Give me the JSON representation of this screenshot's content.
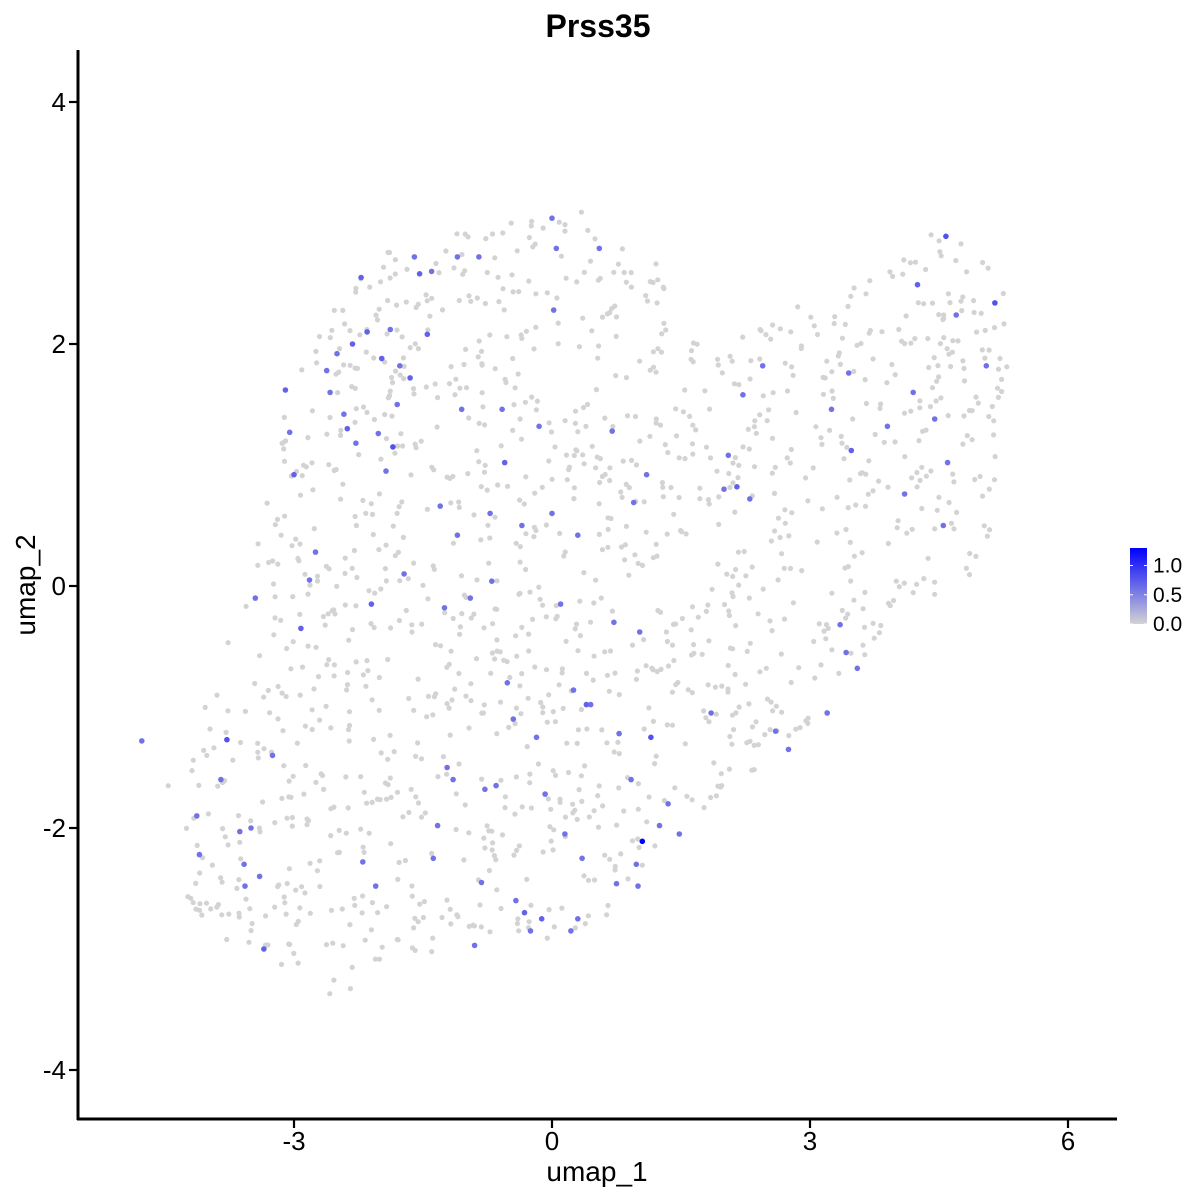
{
  "chart_data": {
    "type": "scatter",
    "title": "Prss35",
    "xlabel": "umap_1",
    "ylabel": "umap_2",
    "xlim": [
      -5.85,
      6.2
    ],
    "ylim": [
      -4.35,
      4.45
    ],
    "xticks": [
      -3,
      0,
      3,
      6
    ],
    "yticks": [
      -4,
      -2,
      0,
      2,
      4
    ],
    "xtick_labels": [
      "-3",
      "0",
      "3",
      "6"
    ],
    "ytick_labels": [
      "-4",
      "-2",
      "0",
      "2",
      "4"
    ],
    "grid": false,
    "legend_position": "right",
    "color_scale": {
      "low_color": "#d3d3d3",
      "high_color": "#0000ff",
      "min": 0,
      "max": 1.3,
      "tick_values": [
        1.0,
        0.5,
        0.0
      ],
      "tick_labels": [
        "1.0",
        "0.5",
        "0.0"
      ]
    },
    "background_cell_count": 1400,
    "expressing_cells": [
      {
        "x": -4.77,
        "y": -1.28,
        "v": 0.6
      },
      {
        "x": -4.13,
        "y": -1.9,
        "v": 0.6
      },
      {
        "x": -4.1,
        "y": -2.22,
        "v": 0.6
      },
      {
        "x": -3.85,
        "y": -1.6,
        "v": 0.6
      },
      {
        "x": -3.78,
        "y": -1.27,
        "v": 0.8
      },
      {
        "x": -3.63,
        "y": -2.03,
        "v": 0.6
      },
      {
        "x": -3.58,
        "y": -2.3,
        "v": 0.6
      },
      {
        "x": -3.57,
        "y": -2.48,
        "v": 0.6
      },
      {
        "x": -3.5,
        "y": -2.0,
        "v": 0.6
      },
      {
        "x": -3.45,
        "y": -0.1,
        "v": 0.6
      },
      {
        "x": -3.4,
        "y": -2.4,
        "v": 0.6
      },
      {
        "x": -3.35,
        "y": -3.0,
        "v": 0.7
      },
      {
        "x": -3.25,
        "y": -1.4,
        "v": 0.6
      },
      {
        "x": -3.1,
        "y": 1.62,
        "v": 0.7
      },
      {
        "x": -3.05,
        "y": 1.27,
        "v": 0.6
      },
      {
        "x": -3.0,
        "y": 0.92,
        "v": 0.7
      },
      {
        "x": -2.92,
        "y": -0.35,
        "v": 0.7
      },
      {
        "x": -2.82,
        "y": 0.05,
        "v": 0.6
      },
      {
        "x": -2.75,
        "y": 0.28,
        "v": 0.6
      },
      {
        "x": -2.62,
        "y": 1.78,
        "v": 0.6
      },
      {
        "x": -2.58,
        "y": 1.6,
        "v": 0.6
      },
      {
        "x": -2.5,
        "y": 1.92,
        "v": 0.6
      },
      {
        "x": -2.42,
        "y": 1.42,
        "v": 0.6
      },
      {
        "x": -2.38,
        "y": 1.3,
        "v": 0.7
      },
      {
        "x": -2.32,
        "y": 2.0,
        "v": 0.7
      },
      {
        "x": -2.28,
        "y": 1.18,
        "v": 0.6
      },
      {
        "x": -2.22,
        "y": 2.55,
        "v": 0.7
      },
      {
        "x": -2.2,
        "y": -2.28,
        "v": 0.6
      },
      {
        "x": -2.15,
        "y": 2.1,
        "v": 0.7
      },
      {
        "x": -2.1,
        "y": -0.15,
        "v": 0.7
      },
      {
        "x": -2.05,
        "y": -2.48,
        "v": 0.6
      },
      {
        "x": -2.02,
        "y": 1.26,
        "v": 0.6
      },
      {
        "x": -1.98,
        "y": 1.88,
        "v": 0.7
      },
      {
        "x": -1.93,
        "y": 0.95,
        "v": 0.6
      },
      {
        "x": -1.88,
        "y": 2.12,
        "v": 0.6
      },
      {
        "x": -1.85,
        "y": 1.15,
        "v": 0.8
      },
      {
        "x": -1.8,
        "y": 1.5,
        "v": 0.6
      },
      {
        "x": -1.77,
        "y": 1.82,
        "v": 0.6
      },
      {
        "x": -1.72,
        "y": 0.1,
        "v": 0.6
      },
      {
        "x": -1.65,
        "y": 1.72,
        "v": 0.7
      },
      {
        "x": -1.6,
        "y": 2.72,
        "v": 0.6
      },
      {
        "x": -1.54,
        "y": 2.58,
        "v": 0.7
      },
      {
        "x": -1.45,
        "y": 2.08,
        "v": 0.7
      },
      {
        "x": -1.4,
        "y": 2.6,
        "v": 0.6
      },
      {
        "x": -1.38,
        "y": -2.25,
        "v": 0.6
      },
      {
        "x": -1.33,
        "y": -1.98,
        "v": 0.6
      },
      {
        "x": -1.3,
        "y": 0.66,
        "v": 0.6
      },
      {
        "x": -1.25,
        "y": -0.18,
        "v": 0.6
      },
      {
        "x": -1.22,
        "y": -1.5,
        "v": 0.6
      },
      {
        "x": -1.15,
        "y": -1.6,
        "v": 0.6
      },
      {
        "x": -1.1,
        "y": 2.72,
        "v": 0.6
      },
      {
        "x": -1.1,
        "y": 0.42,
        "v": 0.6
      },
      {
        "x": -1.05,
        "y": 1.46,
        "v": 0.6
      },
      {
        "x": -0.95,
        "y": -0.1,
        "v": 0.6
      },
      {
        "x": -0.9,
        "y": -2.97,
        "v": 0.6
      },
      {
        "x": -0.85,
        "y": 2.72,
        "v": 0.6
      },
      {
        "x": -0.82,
        "y": -2.45,
        "v": 0.6
      },
      {
        "x": -0.78,
        "y": -1.68,
        "v": 0.6
      },
      {
        "x": -0.72,
        "y": 0.6,
        "v": 0.6
      },
      {
        "x": -0.7,
        "y": 0.04,
        "v": 0.6
      },
      {
        "x": -0.65,
        "y": -1.65,
        "v": 0.6
      },
      {
        "x": -0.58,
        "y": 1.46,
        "v": 0.6
      },
      {
        "x": -0.55,
        "y": 1.02,
        "v": 0.7
      },
      {
        "x": -0.52,
        "y": -0.8,
        "v": 0.6
      },
      {
        "x": -0.45,
        "y": -1.1,
        "v": 0.6
      },
      {
        "x": -0.42,
        "y": -2.6,
        "v": 0.6
      },
      {
        "x": -0.35,
        "y": 0.5,
        "v": 0.6
      },
      {
        "x": -0.32,
        "y": -2.7,
        "v": 0.7
      },
      {
        "x": -0.25,
        "y": -2.85,
        "v": 0.6
      },
      {
        "x": -0.18,
        "y": -1.25,
        "v": 0.6
      },
      {
        "x": -0.15,
        "y": 1.32,
        "v": 0.6
      },
      {
        "x": -0.12,
        "y": -2.75,
        "v": 0.7
      },
      {
        "x": -0.08,
        "y": -1.72,
        "v": 0.6
      },
      {
        "x": 0.0,
        "y": 0.6,
        "v": 0.6
      },
      {
        "x": 0.0,
        "y": 3.04,
        "v": 0.6
      },
      {
        "x": 0.02,
        "y": 2.28,
        "v": 0.6
      },
      {
        "x": 0.05,
        "y": 2.79,
        "v": 0.6
      },
      {
        "x": 0.1,
        "y": -0.15,
        "v": 0.6
      },
      {
        "x": 0.15,
        "y": -2.05,
        "v": 0.6
      },
      {
        "x": 0.22,
        "y": -2.85,
        "v": 0.6
      },
      {
        "x": 0.25,
        "y": -0.86,
        "v": 0.6
      },
      {
        "x": 0.3,
        "y": 0.42,
        "v": 0.6
      },
      {
        "x": 0.3,
        "y": -2.75,
        "v": 0.6
      },
      {
        "x": 0.35,
        "y": -2.25,
        "v": 0.6
      },
      {
        "x": 0.4,
        "y": -0.98,
        "v": 0.7
      },
      {
        "x": 0.45,
        "y": -0.98,
        "v": 0.6
      },
      {
        "x": 0.55,
        "y": 2.79,
        "v": 0.6
      },
      {
        "x": 0.7,
        "y": 1.28,
        "v": 0.6
      },
      {
        "x": 0.72,
        "y": -0.3,
        "v": 0.6
      },
      {
        "x": 0.75,
        "y": -2.46,
        "v": 0.6
      },
      {
        "x": 0.78,
        "y": -1.22,
        "v": 0.6
      },
      {
        "x": 0.92,
        "y": -1.6,
        "v": 0.6
      },
      {
        "x": 0.95,
        "y": 0.69,
        "v": 0.6
      },
      {
        "x": 0.98,
        "y": -2.3,
        "v": 0.6
      },
      {
        "x": 1.0,
        "y": -2.48,
        "v": 0.6
      },
      {
        "x": 1.02,
        "y": -0.38,
        "v": 0.6
      },
      {
        "x": 1.05,
        "y": -2.11,
        "v": 1.3
      },
      {
        "x": 1.1,
        "y": 0.92,
        "v": 0.6
      },
      {
        "x": 1.15,
        "y": -1.25,
        "v": 0.8
      },
      {
        "x": 1.25,
        "y": -1.98,
        "v": 0.6
      },
      {
        "x": 1.35,
        "y": -1.8,
        "v": 0.6
      },
      {
        "x": 1.48,
        "y": -2.05,
        "v": 0.6
      },
      {
        "x": 1.85,
        "y": -1.05,
        "v": 0.6
      },
      {
        "x": 2.0,
        "y": 0.8,
        "v": 0.6
      },
      {
        "x": 2.05,
        "y": 1.08,
        "v": 0.6
      },
      {
        "x": 2.15,
        "y": 0.82,
        "v": 0.7
      },
      {
        "x": 2.22,
        "y": 1.58,
        "v": 0.6
      },
      {
        "x": 2.3,
        "y": 0.72,
        "v": 0.6
      },
      {
        "x": 2.45,
        "y": 1.82,
        "v": 0.6
      },
      {
        "x": 2.6,
        "y": -1.2,
        "v": 0.6
      },
      {
        "x": 2.75,
        "y": -1.35,
        "v": 0.6
      },
      {
        "x": 3.2,
        "y": -1.05,
        "v": 0.6
      },
      {
        "x": 3.25,
        "y": 1.46,
        "v": 0.6
      },
      {
        "x": 3.35,
        "y": -0.32,
        "v": 0.6
      },
      {
        "x": 3.42,
        "y": -0.55,
        "v": 0.6
      },
      {
        "x": 3.45,
        "y": 1.76,
        "v": 0.6
      },
      {
        "x": 3.48,
        "y": 1.12,
        "v": 0.7
      },
      {
        "x": 3.55,
        "y": -0.68,
        "v": 0.6
      },
      {
        "x": 3.9,
        "y": 1.32,
        "v": 0.6
      },
      {
        "x": 4.1,
        "y": 0.76,
        "v": 0.6
      },
      {
        "x": 4.2,
        "y": 1.6,
        "v": 0.6
      },
      {
        "x": 4.25,
        "y": 2.49,
        "v": 0.7
      },
      {
        "x": 4.45,
        "y": 1.38,
        "v": 0.6
      },
      {
        "x": 4.55,
        "y": 0.5,
        "v": 0.6
      },
      {
        "x": 4.58,
        "y": 2.89,
        "v": 0.8
      },
      {
        "x": 4.6,
        "y": 1.02,
        "v": 0.6
      },
      {
        "x": 4.7,
        "y": 2.24,
        "v": 0.6
      },
      {
        "x": 5.05,
        "y": 1.82,
        "v": 0.6
      },
      {
        "x": 5.15,
        "y": 2.34,
        "v": 0.8
      }
    ]
  }
}
